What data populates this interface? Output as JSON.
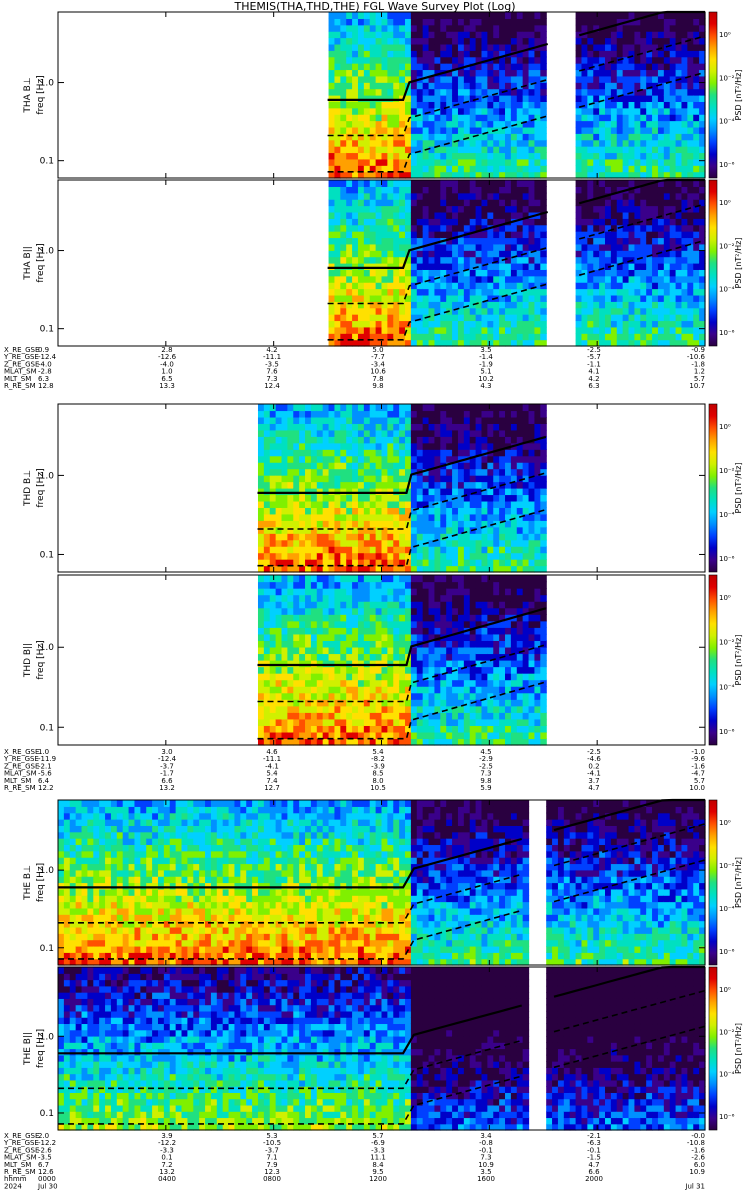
{
  "page": {
    "title": "THEMIS(THA,THD,THE) FGL Wave Survey Plot (Log)"
  },
  "colorbar": {
    "label": "PSD [nT²/Hz]",
    "ticks": [
      "10⁰",
      "10⁻²",
      "10⁻⁴",
      "10⁻⁶"
    ],
    "colors": [
      "#2a0040",
      "#3a008a",
      "#0000c8",
      "#0040ff",
      "#0090ff",
      "#00d0ff",
      "#00e0c0",
      "#20e080",
      "#80f000",
      "#d0f000",
      "#ffe000",
      "#ffa000",
      "#ff5000",
      "#e00000",
      "#c00000"
    ]
  },
  "axis": {
    "freq_ticks": [
      "1.0",
      "0.1"
    ],
    "time_ticks": [
      "0000",
      "0400",
      "0800",
      "1200",
      "1600",
      "2000"
    ],
    "date_start": "Jul 30",
    "date_end": "Jul 31",
    "year": "2024",
    "hhmm_label": "hhmm"
  },
  "panels": [
    {
      "label_top": "THA B⊥",
      "label_bottom": "freq [Hz]"
    },
    {
      "label_top": "THA B||",
      "label_bottom": "freq [Hz]"
    },
    {
      "label_top": "THD B⊥",
      "label_bottom": "freq [Hz]"
    },
    {
      "label_top": "THD B||",
      "label_bottom": "freq [Hz]"
    },
    {
      "label_top": "THE B⊥",
      "label_bottom": "freq [Hz]"
    },
    {
      "label_top": "THE B||",
      "label_bottom": "freq [Hz]"
    }
  ],
  "ephemeris": [
    {
      "rows": [
        {
          "name": "X_RE_GSE",
          "values": [
            "0.9",
            "2.8",
            "4.2",
            "5.0",
            "3.5",
            "-2.5",
            "-0.9"
          ]
        },
        {
          "name": "Y_RE_GSE",
          "values": [
            "-12.4",
            "-12.6",
            "-11.1",
            "-7.7",
            "-1.4",
            "-5.7",
            "-10.6"
          ]
        },
        {
          "name": "Z_RE_GSE",
          "values": [
            "-4.0",
            "-4.0",
            "-3.5",
            "-3.4",
            "-1.9",
            "-1.1",
            "-1.8"
          ]
        },
        {
          "name": "MLAT_SM",
          "values": [
            "-2.8",
            "1.0",
            "7.6",
            "10.6",
            "5.1",
            "4.1",
            "1.2"
          ]
        },
        {
          "name": "MLT_SM",
          "values": [
            "6.3",
            "6.5",
            "7.3",
            "7.8",
            "10.2",
            "4.2",
            "5.7"
          ]
        },
        {
          "name": "R_RE_SM",
          "values": [
            "12.8",
            "13.3",
            "12.4",
            "9.8",
            "4.3",
            "6.3",
            "10.7"
          ]
        }
      ]
    },
    {
      "rows": [
        {
          "name": "X_RE_GSE",
          "values": [
            "1.0",
            "3.0",
            "4.6",
            "5.4",
            "4.5",
            "-2.5",
            "-1.0"
          ]
        },
        {
          "name": "Y_RE_GSE",
          "values": [
            "-11.9",
            "-12.4",
            "-11.1",
            "-8.2",
            "-2.9",
            "-4.6",
            "-9.6"
          ]
        },
        {
          "name": "Z_RE_GSE",
          "values": [
            "-2.1",
            "-3.7",
            "-4.1",
            "-3.9",
            "-2.5",
            "0.2",
            "-1.6"
          ]
        },
        {
          "name": "MLAT_SM",
          "values": [
            "-5.6",
            "-1.7",
            "5.4",
            "8.5",
            "7.3",
            "-4.1",
            "-4.7"
          ]
        },
        {
          "name": "MLT_SM",
          "values": [
            "6.4",
            "6.6",
            "7.4",
            "8.0",
            "9.8",
            "3.7",
            "5.7"
          ]
        },
        {
          "name": "R_RE_SM",
          "values": [
            "12.2",
            "13.2",
            "12.7",
            "10.5",
            "5.9",
            "4.7",
            "10.0"
          ]
        }
      ]
    },
    {
      "rows": [
        {
          "name": "X_RE_GSE",
          "values": [
            "2.0",
            "3.9",
            "5.3",
            "5.7",
            "3.4",
            "-2.1",
            "-0.0"
          ]
        },
        {
          "name": "Y_RE_GSE",
          "values": [
            "-12.2",
            "-12.2",
            "-10.5",
            "-6.9",
            "-0.8",
            "-6.3",
            "-10.8"
          ]
        },
        {
          "name": "Z_RE_GSE",
          "values": [
            "-2.6",
            "-3.3",
            "-3.7",
            "-3.3",
            "-0.1",
            "-0.1",
            "-1.6"
          ]
        },
        {
          "name": "MLAT_SM",
          "values": [
            "-3.5",
            "0.1",
            "7.1",
            "11.1",
            "7.3",
            "-1.5",
            "-2.6"
          ]
        },
        {
          "name": "MLT_SM",
          "values": [
            "6.7",
            "7.2",
            "7.9",
            "8.4",
            "10.9",
            "4.7",
            "6.0"
          ]
        },
        {
          "name": "R_RE_SM",
          "values": [
            "12.6",
            "13.2",
            "12.3",
            "9.5",
            "3.5",
            "6.6",
            "10.9"
          ]
        },
        {
          "name": "hhmm",
          "values": [
            "0000",
            "0400",
            "0800",
            "1200",
            "1600",
            "2000",
            ""
          ]
        },
        {
          "name": "2024",
          "values": [
            "Jul 30",
            "",
            "",
            "",
            "",
            "",
            "Jul 31"
          ]
        }
      ]
    }
  ],
  "chart_data": {
    "type": "heatmap",
    "title": "THEMIS(THA,THD,THE) FGL Wave Survey Plot (Log)",
    "xlabel": "hhmm",
    "x_range": [
      "2024-07-30 00:00",
      "2024-07-31 00:00"
    ],
    "y_scale": "log",
    "ylabel": "freq [Hz]",
    "y_range_hz": [
      0.06,
      8.0
    ],
    "z_scale": "log",
    "zlabel": "PSD [nT²/Hz]",
    "z_ticks": [
      "10⁰",
      "10⁻²",
      "10⁻⁴",
      "10⁻⁶"
    ],
    "panels": [
      {
        "label": "THA B⊥",
        "probe": "THA",
        "component": "perp",
        "data_hours": [
          [
            10.0,
            24.0
          ]
        ],
        "gaps_hours": [
          [
            18.2,
            19.3
          ]
        ]
      },
      {
        "label": "THA B||",
        "probe": "THA",
        "component": "par",
        "data_hours": [
          [
            10.0,
            24.0
          ]
        ],
        "gaps_hours": [
          [
            18.2,
            19.3
          ]
        ]
      },
      {
        "label": "THD B⊥",
        "probe": "THD",
        "component": "perp",
        "data_hours": [
          [
            7.4,
            18.1
          ]
        ],
        "gaps_hours": []
      },
      {
        "label": "THD B||",
        "probe": "THD",
        "component": "par",
        "data_hours": [
          [
            7.4,
            18.1
          ]
        ],
        "gaps_hours": []
      },
      {
        "label": "THE B⊥",
        "probe": "THE",
        "component": "perp",
        "data_hours": [
          [
            0.0,
            24.0
          ]
        ],
        "gaps_hours": [
          [
            17.4,
            18.0
          ]
        ]
      },
      {
        "label": "THE B||",
        "probe": "THE",
        "component": "par",
        "data_hours": [
          [
            0.0,
            24.0
          ]
        ],
        "gaps_hours": [
          [
            17.4,
            18.0
          ]
        ]
      }
    ],
    "overlays": "solid black gyrofrequency trace with dashed harmonic/fraction traces"
  }
}
